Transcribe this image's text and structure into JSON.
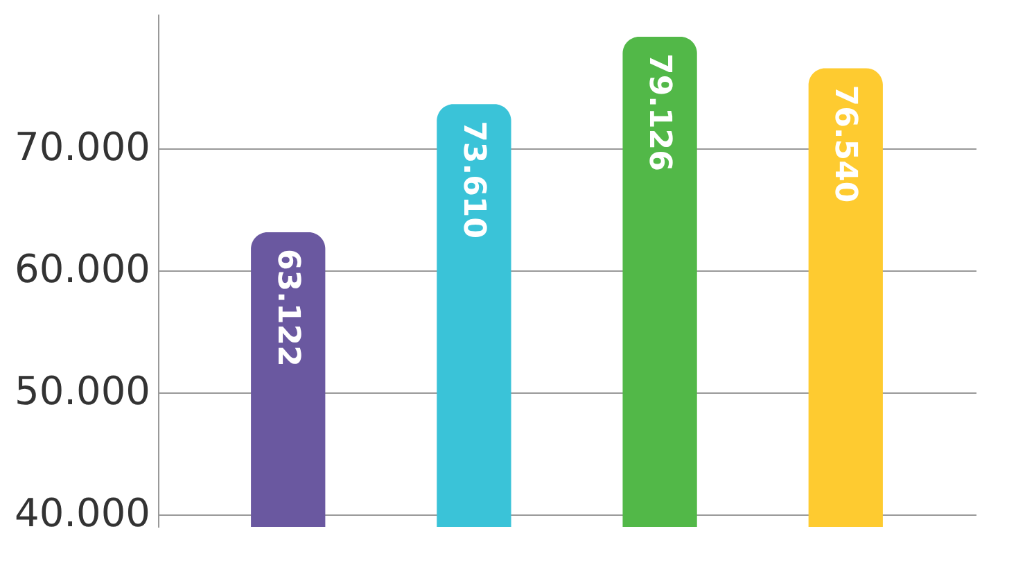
{
  "chart_data": {
    "type": "bar",
    "categories": [
      null,
      null,
      null,
      null
    ],
    "values": [
      63122,
      73610,
      79126,
      76540
    ],
    "colors": [
      "#6a58a0",
      "#3ac3d8",
      "#52b848",
      "#fecb30"
    ],
    "value_labels": [
      "63.122",
      "73.610",
      "79.126",
      "76.540"
    ],
    "ylim": [
      39000,
      81000
    ],
    "yticks": [
      {
        "value": 40000,
        "label": "40.000"
      },
      {
        "value": 50000,
        "label": "50.000"
      },
      {
        "value": 60000,
        "label": "60.000"
      },
      {
        "value": 70000,
        "label": "70.000"
      }
    ],
    "grid": "y",
    "tick_labels": "y"
  }
}
